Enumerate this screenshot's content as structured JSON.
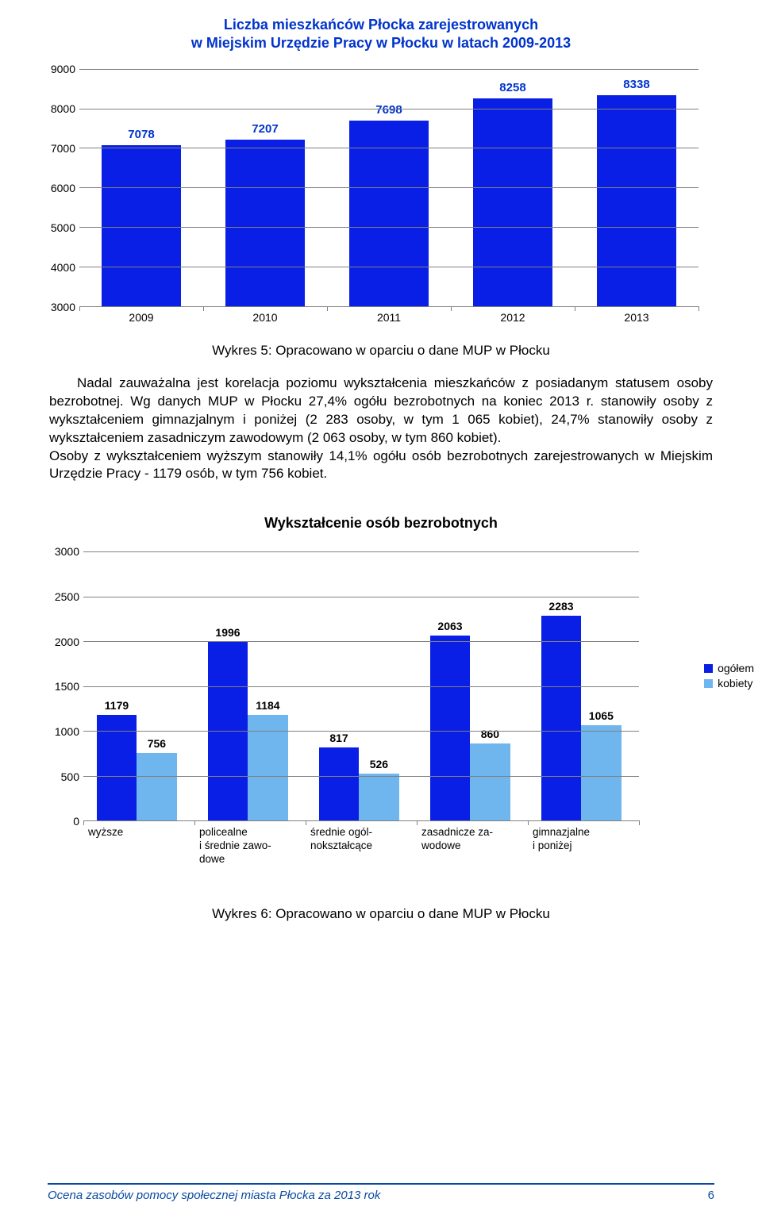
{
  "chart1": {
    "title_line1": "Liczba mieszkańców Płocka zarejestrowanych",
    "title_line2": "w Miejskim Urzędzie Pracy w Płocku w latach 2009-2013",
    "categories": [
      "2009",
      "2010",
      "2011",
      "2012",
      "2013"
    ],
    "values": [
      7078,
      7207,
      7698,
      8258,
      8338
    ],
    "bar_color": "#0a1fe6",
    "label_color": "#0033cc",
    "ymin": 3000,
    "ymax": 9000,
    "ytick_step": 1000,
    "yticks": [
      "3000",
      "4000",
      "5000",
      "6000",
      "7000",
      "8000",
      "9000"
    ],
    "grid_color": "#808080",
    "caption": "Wykres 5: Opracowano w oparciu o dane MUP w Płocku"
  },
  "paragraph": "Nadal zauważalna jest korelacja poziomu wykształcenia mieszkańców z posiadanym statusem osoby bezrobotnej. Wg danych MUP w Płocku 27,4% ogółu bezrobotnych na koniec 2013 r. stanowiły osoby z wykształceniem gimnazjalnym i poniżej (2 283 osoby, w tym 1 065 kobiet), 24,7% stanowiły osoby z wykształceniem zasadniczym zawodowym (2 063 osoby, w tym 860 kobiet).",
  "paragraph2": "Osoby z wykształceniem wyższym stanowiły 14,1% ogółu osób bezrobotnych zarejestrowanych w Miejskim Urzędzie Pracy - 1179 osób, w tym 756 kobiet.",
  "chart2": {
    "title": "Wykształcenie osób bezrobotnych",
    "categories": [
      "wyższe",
      "policealne i średnie zawodowe",
      "średnie ogólnokształcące",
      "zasadnicze zawodowe",
      "gimnazjalne i poniżej"
    ],
    "cat_line1": [
      "wyższe",
      "policealne",
      "średnie ogól-",
      "zasadnicze za-",
      "gimnazjalne"
    ],
    "cat_line2": [
      "",
      "i średnie zawo-",
      "nokształcące",
      "wodowe",
      "i poniżej"
    ],
    "cat_line3": [
      "",
      "dowe",
      "",
      "",
      ""
    ],
    "series": [
      {
        "name": "ogółem",
        "color": "#0a1fe6",
        "values": [
          1179,
          1996,
          817,
          2063,
          2283
        ]
      },
      {
        "name": "kobiety",
        "color": "#6fb6ee",
        "values": [
          756,
          1184,
          526,
          860,
          1065
        ]
      }
    ],
    "ymin": 0,
    "ymax": 3000,
    "ytick_step": 500,
    "yticks": [
      "0",
      "500",
      "1000",
      "1500",
      "2000",
      "2500",
      "3000"
    ],
    "grid_color": "#808080",
    "caption": "Wykres 6: Opracowano w oparciu o dane MUP w Płocku"
  },
  "footer": {
    "text": "Ocena zasobów pomocy społecznej miasta Płocka za 2013 rok",
    "page": "6",
    "color": "#0a4aa0"
  }
}
